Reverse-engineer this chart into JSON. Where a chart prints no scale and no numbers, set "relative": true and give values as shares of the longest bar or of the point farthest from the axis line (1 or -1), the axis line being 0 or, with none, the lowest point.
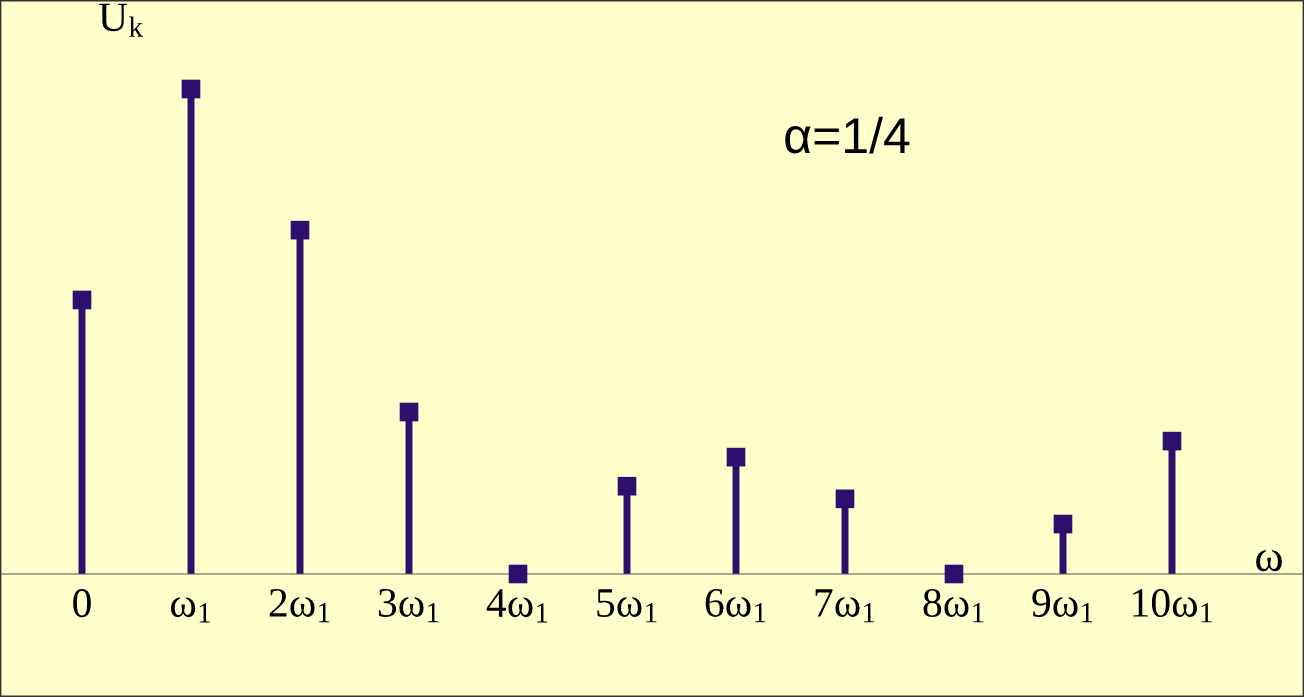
{
  "chart_data": {
    "type": "lollipop",
    "relative": true,
    "marker": "square",
    "color": "#2e0f6e",
    "categories": [
      "0",
      "ω$_{1}$",
      "2ω$_{1}$",
      "3ω$_{1}$",
      "4ω$_{1}$",
      "5ω$_{1}$",
      "6ω$_{1}$",
      "7ω$_{1}$",
      "8ω$_{1}$",
      "9ω$_{1}$",
      "10ω$_{1}$"
    ],
    "values": [
      0.565,
      1,
      0.709,
      0.334,
      0,
      0.181,
      0.241,
      0.155,
      0,
      0.103,
      0.274
    ],
    "xlabel": "ω",
    "ylabel": "U$_{k}$",
    "annotations": [
      "α=1/4"
    ]
  }
}
